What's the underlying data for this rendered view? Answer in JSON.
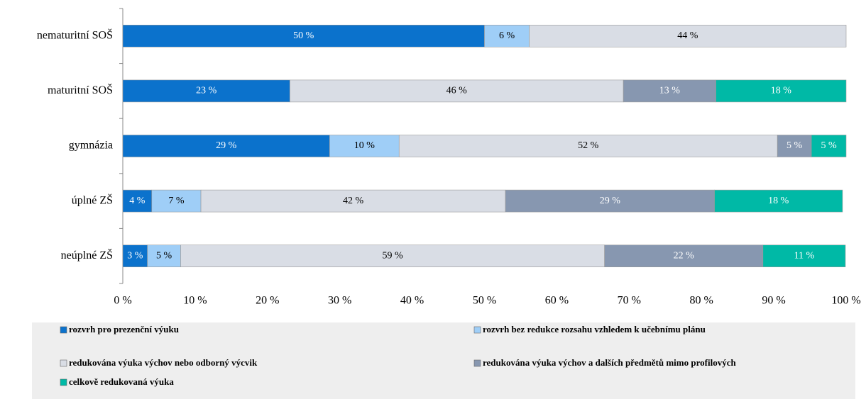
{
  "chart_data": {
    "type": "stacked-barh",
    "categories": [
      "nematuritní SOŠ",
      "maturitní SOŠ",
      "gymnázia",
      "úplné ZŠ",
      "neúplné ZŠ"
    ],
    "series": [
      {
        "name": "rozvrh pro prezenční výuku",
        "color": "#0b72cc",
        "values": [
          50,
          23.1,
          28.6,
          4.0,
          3.4
        ],
        "value_labels": [
          "50 %",
          "23 %",
          "29 %",
          "4 %",
          "3 %"
        ]
      },
      {
        "name": "rozvrh bez redukce rozsahu vzhledem k učebnímu plánu",
        "color": "#9fcef7",
        "values": [
          6.2,
          null,
          9.6,
          6.8,
          4.6
        ],
        "value_labels": [
          "6 %",
          null,
          "10 %",
          "7 %",
          "5 %"
        ]
      },
      {
        "name": "redukována výuka výchov nebo odborný výcvik",
        "color": "#d9dde5",
        "values": [
          43.8,
          46.1,
          52.3,
          42.1,
          58.6
        ],
        "value_labels": [
          "44 %",
          "46 %",
          "52 %",
          "42 %",
          "59 %"
        ]
      },
      {
        "name": "redukována výuka výchov a dalších předmětů mimo profilových",
        "color": "#8797b0",
        "values": [
          null,
          12.8,
          4.7,
          28.9,
          21.9
        ],
        "value_labels": [
          null,
          "13 %",
          "5 %",
          "29 %",
          "22 %"
        ]
      },
      {
        "name": "celkově redukovaná výuka",
        "color": "#00b9a6",
        "values": [
          null,
          18.0,
          4.8,
          17.7,
          11.4
        ],
        "value_labels": [
          null,
          "18 %",
          "5 %",
          "18 %",
          "11 %"
        ]
      }
    ],
    "xlim": [
      0,
      100
    ],
    "xticks": [
      {
        "value": 0,
        "label": "0 %"
      },
      {
        "value": 10,
        "label": "10 %"
      },
      {
        "value": 20,
        "label": "20 %"
      },
      {
        "value": 30,
        "label": "30 %"
      },
      {
        "value": 40,
        "label": "40 %"
      },
      {
        "value": 50,
        "label": "50 %"
      },
      {
        "value": 60,
        "label": "60 %"
      },
      {
        "value": 70,
        "label": "70 %"
      },
      {
        "value": 80,
        "label": "80 %"
      },
      {
        "value": 90,
        "label": "90 %"
      },
      {
        "value": 100,
        "label": "100 %"
      }
    ],
    "legend": "bottom"
  }
}
